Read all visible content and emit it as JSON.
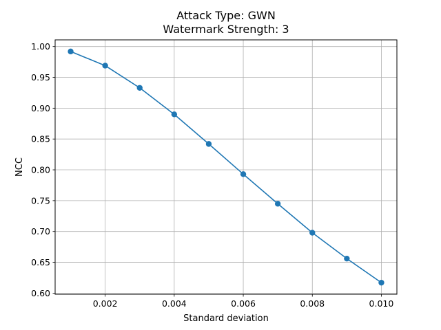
{
  "chart_data": {
    "type": "line",
    "title_line1": "Attack Type: GWN",
    "title_line2": "Watermark Strength: 3",
    "xlabel": "Standard deviation",
    "ylabel": "NCC",
    "x": [
      0.001,
      0.002,
      0.003,
      0.004,
      0.005,
      0.006,
      0.007,
      0.008,
      0.009,
      0.01
    ],
    "series": [
      {
        "values": [
          0.992,
          0.969,
          0.933,
          0.89,
          0.842,
          0.793,
          0.745,
          0.698,
          0.656,
          0.617
        ],
        "color": "#1f77b4",
        "marker": "circle"
      }
    ],
    "xlim": [
      0.00055,
      0.01045
    ],
    "ylim": [
      0.5982,
      1.0108
    ],
    "xticks": [
      0.002,
      0.004,
      0.006,
      0.008,
      0.01
    ],
    "xtick_labels": [
      "0.002",
      "0.004",
      "0.006",
      "0.008",
      "0.010"
    ],
    "yticks": [
      0.6,
      0.65,
      0.7,
      0.75,
      0.8,
      0.85,
      0.9,
      0.95,
      1.0
    ],
    "ytick_labels": [
      "0.60",
      "0.65",
      "0.70",
      "0.75",
      "0.80",
      "0.85",
      "0.90",
      "0.95",
      "1.00"
    ],
    "grid": true
  }
}
